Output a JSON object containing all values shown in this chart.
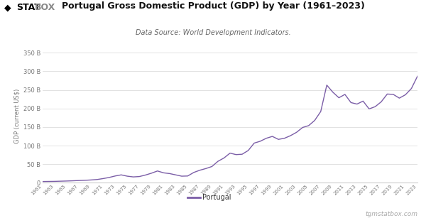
{
  "title": "Portugal Gross Domestic Product (GDP) by Year (1961–2023)",
  "subtitle": "Data Source: World Development Indicators.",
  "ylabel": "GDP (current US$)",
  "legend_label": "Portugal",
  "watermark": "tgmstatbox.com",
  "line_color": "#7B5EA7",
  "bg_color": "#ffffff",
  "plot_bg_color": "#ffffff",
  "grid_color": "#dddddd",
  "years": [
    1961,
    1962,
    1963,
    1964,
    1965,
    1966,
    1967,
    1968,
    1969,
    1970,
    1971,
    1972,
    1973,
    1974,
    1975,
    1976,
    1977,
    1978,
    1979,
    1980,
    1981,
    1982,
    1983,
    1984,
    1985,
    1986,
    1987,
    1988,
    1989,
    1990,
    1991,
    1992,
    1993,
    1994,
    1995,
    1996,
    1997,
    1998,
    1999,
    2000,
    2001,
    2002,
    2003,
    2004,
    2005,
    2006,
    2007,
    2008,
    2009,
    2010,
    2011,
    2012,
    2013,
    2014,
    2015,
    2016,
    2017,
    2018,
    2019,
    2020,
    2021,
    2022,
    2023
  ],
  "gdp_billions": [
    3.6,
    3.8,
    4.0,
    4.5,
    5.0,
    5.6,
    6.3,
    6.9,
    7.8,
    9.0,
    11.5,
    14.5,
    18.5,
    21.5,
    18.0,
    16.0,
    17.0,
    21.0,
    26.0,
    32.0,
    27.0,
    25.0,
    21.5,
    18.0,
    18.5,
    28.0,
    34.0,
    38.5,
    44.0,
    58.0,
    67.0,
    80.0,
    76.0,
    77.0,
    87.0,
    107.0,
    112.0,
    120.0,
    125.0,
    117.0,
    120.0,
    127.0,
    136.0,
    149.0,
    154.0,
    168.0,
    192.0,
    263.0,
    244.0,
    229.0,
    238.0,
    216.0,
    212.0,
    220.0,
    199.0,
    205.0,
    218.0,
    239.0,
    238.0,
    228.0,
    237.0,
    254.0,
    287.0
  ],
  "yticks": [
    0,
    50,
    100,
    150,
    200,
    250,
    300,
    350
  ],
  "ylim": [
    0,
    360
  ],
  "xtick_years": [
    1961,
    1963,
    1965,
    1967,
    1969,
    1971,
    1973,
    1975,
    1977,
    1979,
    1981,
    1983,
    1985,
    1987,
    1989,
    1991,
    1993,
    1995,
    1997,
    1999,
    2001,
    2003,
    2005,
    2007,
    2009,
    2011,
    2013,
    2015,
    2017,
    2019,
    2021,
    2023
  ],
  "logo_diamond": "◆",
  "logo_stat": "STAT",
  "logo_box": "BOX"
}
